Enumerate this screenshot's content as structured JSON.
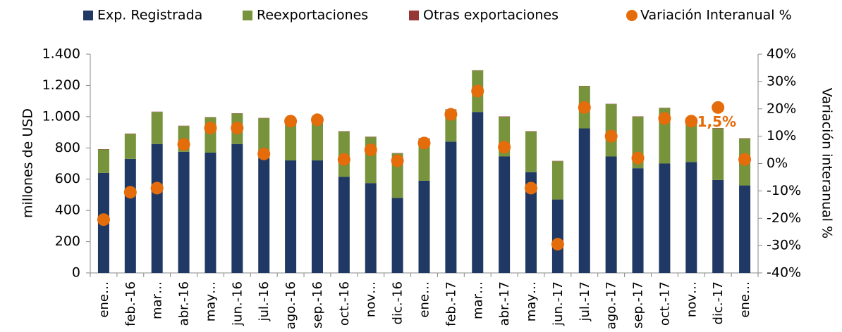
{
  "chart_data": {
    "type": "bar",
    "categories": [
      "ene…",
      "feb.-16",
      "mar…",
      "abr.-16",
      "may…",
      "jun.-16",
      "jul.-16",
      "ago.-16",
      "sep.-16",
      "oct.-16",
      "nov…",
      "dic.-16",
      "ene…",
      "feb.-17",
      "mar…",
      "abr.-17",
      "may…",
      "jun.-17",
      "jul.-17",
      "ago.-17",
      "sep.-17",
      "oct.-17",
      "nov…",
      "dic.-17",
      "ene…"
    ],
    "stacked": true,
    "series": [
      {
        "name": "Exp. Registrada",
        "color": "#1f3864",
        "values": [
          640,
          730,
          825,
          775,
          770,
          825,
          735,
          720,
          720,
          615,
          575,
          480,
          590,
          840,
          1030,
          745,
          645,
          470,
          925,
          745,
          670,
          700,
          710,
          595,
          560
        ]
      },
      {
        "name": "Reexportaciones",
        "color": "#77933c",
        "values": [
          150,
          160,
          205,
          165,
          225,
          195,
          255,
          265,
          265,
          290,
          295,
          285,
          270,
          205,
          265,
          255,
          260,
          245,
          270,
          335,
          330,
          355,
          275,
          330,
          300
        ]
      },
      {
        "name": "Otras exportaciones",
        "color": "#953735",
        "values": [
          2,
          2,
          2,
          2,
          2,
          2,
          2,
          2,
          2,
          2,
          2,
          2,
          2,
          2,
          2,
          2,
          2,
          2,
          2,
          2,
          2,
          2,
          2,
          2,
          2
        ]
      },
      {
        "name": "Variación Interanual %",
        "color": "#e46c0a",
        "type": "scatter",
        "axis": "y2",
        "values": [
          -20.5,
          -10.5,
          -9,
          7,
          13,
          13,
          3.5,
          15.5,
          16,
          1.5,
          5,
          1,
          7.5,
          18,
          26.5,
          6,
          -9,
          -29.5,
          20.5,
          10,
          2,
          16.5,
          15.5,
          20.5,
          1.5
        ]
      }
    ],
    "annotation": "1,5%",
    "ylabel": "millones de  USD",
    "y2label": "Variación  interanual %",
    "ylim": [
      0,
      1400
    ],
    "yticks": [
      0,
      200,
      400,
      600,
      800,
      {
        "value": 1000,
        "label": "1.000"
      },
      {
        "value": 1200,
        "label": "1.200"
      },
      {
        "value": 1400,
        "label": "1.400"
      }
    ],
    "y2lim": [
      -40,
      40
    ],
    "y2ticks": [
      {
        "value": -40,
        "label": "-40%"
      },
      {
        "value": -30,
        "label": "-30%"
      },
      {
        "value": -20,
        "label": "-20%"
      },
      {
        "value": -10,
        "label": "-10%"
      },
      {
        "value": 0,
        "label": "0%"
      },
      {
        "value": 10,
        "label": "10%"
      },
      {
        "value": 20,
        "label": "20%"
      },
      {
        "value": 30,
        "label": "30%"
      },
      {
        "value": 40,
        "label": "40%"
      }
    ],
    "legend": "top"
  }
}
